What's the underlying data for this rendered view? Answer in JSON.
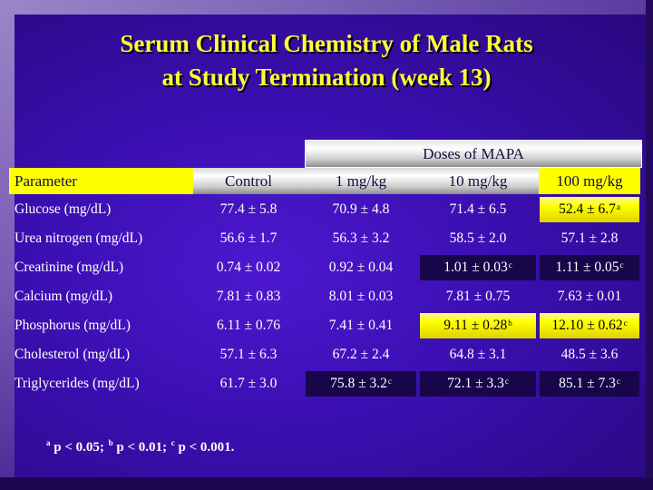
{
  "slide": {
    "title_line1": "Serum Clinical Chemistry of Male Rats",
    "title_line2": "at Study Termination (week 13)",
    "group_header": "Doses of MAPA"
  },
  "table": {
    "headers": [
      "Parameter",
      "Control",
      "1 mg/kg",
      "10 mg/kg",
      "100 mg/kg"
    ],
    "rows": [
      {
        "param": "Glucose (mg/dL)",
        "cells": [
          {
            "v": "77.4 ± 5.8",
            "sup": ""
          },
          {
            "v": "70.9 ± 4.8",
            "sup": ""
          },
          {
            "v": "71.4 ± 6.5",
            "sup": ""
          },
          {
            "v": "52.4 ± 6.7",
            "sup": "a",
            "hl": "yellow"
          }
        ]
      },
      {
        "param": "Urea nitrogen (mg/dL)",
        "cells": [
          {
            "v": "56.6 ± 1.7",
            "sup": ""
          },
          {
            "v": "56.3 ± 3.2",
            "sup": ""
          },
          {
            "v": "58.5 ± 2.0",
            "sup": ""
          },
          {
            "v": "57.1 ± 2.8",
            "sup": ""
          }
        ]
      },
      {
        "param": "Creatinine (mg/dL)",
        "cells": [
          {
            "v": "0.74 ± 0.02",
            "sup": ""
          },
          {
            "v": "0.92 ± 0.04",
            "sup": ""
          },
          {
            "v": "1.01 ± 0.03",
            "sup": "c",
            "hl": "purple"
          },
          {
            "v": "1.11 ± 0.05",
            "sup": "c",
            "hl": "purple"
          }
        ]
      },
      {
        "param": "Calcium (mg/dL)",
        "cells": [
          {
            "v": "7.81 ± 0.83",
            "sup": ""
          },
          {
            "v": "8.01 ± 0.03",
            "sup": ""
          },
          {
            "v": "7.81 ± 0.75",
            "sup": ""
          },
          {
            "v": "7.63 ± 0.01",
            "sup": ""
          }
        ]
      },
      {
        "param": "Phosphorus (mg/dL)",
        "cells": [
          {
            "v": "6.11 ± 0.76",
            "sup": ""
          },
          {
            "v": "7.41 ± 0.41",
            "sup": ""
          },
          {
            "v": "9.11 ± 0.28",
            "sup": "b",
            "hl": "yellow"
          },
          {
            "v": "12.10 ± 0.62",
            "sup": "c",
            "hl": "yellow"
          }
        ]
      },
      {
        "param": "Cholesterol (mg/dL)",
        "cells": [
          {
            "v": "57.1 ± 6.3",
            "sup": ""
          },
          {
            "v": "67.2 ± 2.4",
            "sup": ""
          },
          {
            "v": "64.8 ± 3.1",
            "sup": ""
          },
          {
            "v": "48.5 ± 3.6",
            "sup": ""
          }
        ]
      },
      {
        "param": "Triglycerides (mg/dL)",
        "cells": [
          {
            "v": "61.7 ± 3.0",
            "sup": ""
          },
          {
            "v": "75.8 ± 3.2",
            "sup": "c",
            "hl": "purple"
          },
          {
            "v": "72.1 ± 3.3",
            "sup": "c",
            "hl": "purple"
          },
          {
            "v": "85.1 ± 7.3",
            "sup": "c",
            "hl": "purple"
          }
        ]
      }
    ]
  },
  "footnote": {
    "a_mark": "a",
    "a_text": " p < 0.05; ",
    "b_mark": "b",
    "b_text": " p < 0.01; ",
    "c_mark": "c",
    "c_text": " p < 0.001."
  },
  "colors": {
    "title": "#ffff33",
    "highlight_yellow": "#ffff00",
    "highlight_dark": "#18064a",
    "background": "#3a0fb0"
  }
}
